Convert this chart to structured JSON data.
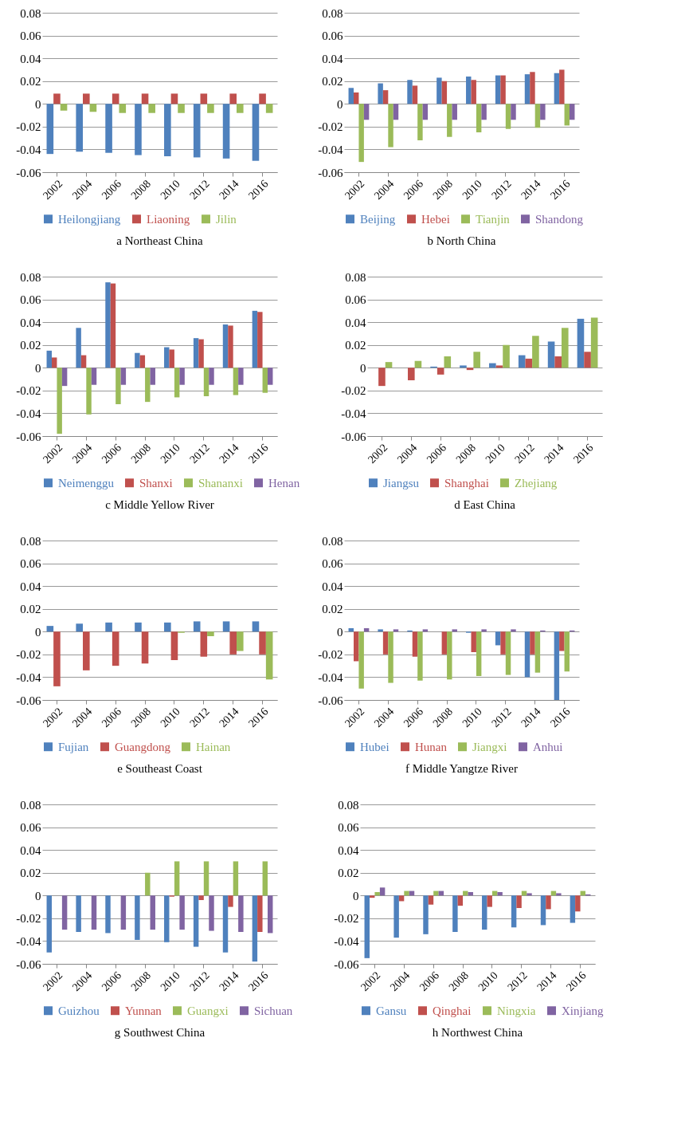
{
  "chart_data": [
    {
      "type": "bar",
      "title": "a Northeast China",
      "categories": [
        "2002",
        "2004",
        "2006",
        "2008",
        "2010",
        "2012",
        "2014",
        "2016"
      ],
      "ylim": [
        -0.06,
        0.08
      ],
      "yticks": [
        -0.06,
        -0.04,
        -0.02,
        0,
        0.02,
        0.04,
        0.06,
        0.08
      ],
      "grid": "y",
      "legend": "bottom",
      "series": [
        {
          "name": "Heilongjiang",
          "color": "#4f81bd",
          "values": [
            -0.044,
            -0.042,
            -0.043,
            -0.045,
            -0.046,
            -0.047,
            -0.048,
            -0.05
          ]
        },
        {
          "name": "Liaoning",
          "color": "#c0504d",
          "values": [
            0.009,
            0.009,
            0.009,
            0.009,
            0.009,
            0.009,
            0.009,
            0.009
          ]
        },
        {
          "name": "Jilin",
          "color": "#9bbb59",
          "values": [
            -0.006,
            -0.007,
            -0.008,
            -0.008,
            -0.008,
            -0.008,
            -0.008,
            -0.008
          ]
        }
      ]
    },
    {
      "type": "bar",
      "title": "b North China",
      "categories": [
        "2002",
        "2004",
        "2006",
        "2008",
        "2010",
        "2012",
        "2014",
        "2016"
      ],
      "ylim": [
        -0.06,
        0.08
      ],
      "yticks": [
        -0.06,
        -0.04,
        -0.02,
        0,
        0.02,
        0.04,
        0.06,
        0.08
      ],
      "grid": "y",
      "legend": "bottom",
      "series": [
        {
          "name": "Beijing",
          "color": "#4f81bd",
          "values": [
            0.014,
            0.018,
            0.021,
            0.023,
            0.024,
            0.025,
            0.026,
            0.027
          ]
        },
        {
          "name": "Hebei",
          "color": "#c0504d",
          "values": [
            0.01,
            0.012,
            0.016,
            0.02,
            0.021,
            0.025,
            0.028,
            0.03
          ]
        },
        {
          "name": "Tianjin",
          "color": "#9bbb59",
          "values": [
            -0.051,
            -0.038,
            -0.032,
            -0.029,
            -0.025,
            -0.022,
            -0.021,
            -0.019
          ]
        },
        {
          "name": "Shandong",
          "color": "#8064a2",
          "values": [
            -0.014,
            -0.014,
            -0.014,
            -0.014,
            -0.014,
            -0.014,
            -0.014,
            -0.014
          ]
        }
      ]
    },
    {
      "type": "bar",
      "title": "c Middle Yellow River",
      "categories": [
        "2002",
        "2004",
        "2006",
        "2008",
        "2010",
        "2012",
        "2014",
        "2016"
      ],
      "ylim": [
        -0.06,
        0.08
      ],
      "yticks": [
        -0.06,
        -0.04,
        -0.02,
        0,
        0.02,
        0.04,
        0.06,
        0.08
      ],
      "grid": "y",
      "legend": "bottom",
      "series": [
        {
          "name": "Neimenggu",
          "color": "#4f81bd",
          "values": [
            0.015,
            0.035,
            0.075,
            0.013,
            0.018,
            0.026,
            0.038,
            0.05
          ]
        },
        {
          "name": "Shanxi",
          "color": "#c0504d",
          "values": [
            0.009,
            0.011,
            0.074,
            0.011,
            0.016,
            0.025,
            0.037,
            0.049
          ]
        },
        {
          "name": "Shananxi",
          "color": "#9bbb59",
          "values": [
            -0.058,
            -0.041,
            -0.032,
            -0.03,
            -0.026,
            -0.025,
            -0.024,
            -0.022
          ]
        },
        {
          "name": "Henan",
          "color": "#8064a2",
          "values": [
            -0.016,
            -0.015,
            -0.015,
            -0.015,
            -0.015,
            -0.015,
            -0.015,
            -0.015
          ]
        }
      ]
    },
    {
      "type": "bar",
      "title": "d East China",
      "categories": [
        "2002",
        "2004",
        "2006",
        "2008",
        "2010",
        "2012",
        "2014",
        "2016"
      ],
      "ylim": [
        -0.06,
        0.08
      ],
      "yticks": [
        -0.06,
        -0.04,
        -0.02,
        0,
        0.02,
        0.04,
        0.06,
        0.08
      ],
      "grid": "y",
      "legend": "bottom",
      "series": [
        {
          "name": "Jiangsu",
          "color": "#4f81bd",
          "values": [
            0,
            0,
            0.001,
            0.002,
            0.004,
            0.011,
            0.023,
            0.043
          ]
        },
        {
          "name": "Shanghai",
          "color": "#c0504d",
          "values": [
            -0.016,
            -0.011,
            -0.006,
            -0.002,
            0.002,
            0.008,
            0.01,
            0.014
          ]
        },
        {
          "name": "Zhejiang",
          "color": "#9bbb59",
          "values": [
            0.005,
            0.006,
            0.01,
            0.014,
            0.02,
            0.028,
            0.035,
            0.044
          ]
        }
      ]
    },
    {
      "type": "bar",
      "title": "e Southeast Coast",
      "categories": [
        "2002",
        "2004",
        "2006",
        "2008",
        "2010",
        "2012",
        "2014",
        "2016"
      ],
      "ylim": [
        -0.06,
        0.08
      ],
      "yticks": [
        -0.06,
        -0.04,
        -0.02,
        0,
        0.02,
        0.04,
        0.06,
        0.08
      ],
      "grid": "y",
      "legend": "bottom",
      "series": [
        {
          "name": "Fujian",
          "color": "#4f81bd",
          "values": [
            0.005,
            0.007,
            0.008,
            0.008,
            0.008,
            0.009,
            0.009,
            0.009
          ]
        },
        {
          "name": "Guangdong",
          "color": "#c0504d",
          "values": [
            -0.048,
            -0.034,
            -0.03,
            -0.028,
            -0.025,
            -0.022,
            -0.02,
            -0.02
          ]
        },
        {
          "name": "Hainan",
          "color": "#9bbb59",
          "values": [
            0,
            0,
            0,
            0,
            -0.001,
            -0.004,
            -0.017,
            -0.042
          ]
        }
      ]
    },
    {
      "type": "bar",
      "title": "f Middle Yangtze River",
      "categories": [
        "2002",
        "2004",
        "2006",
        "2008",
        "2010",
        "2012",
        "2014",
        "2016"
      ],
      "ylim": [
        -0.06,
        0.08
      ],
      "yticks": [
        -0.06,
        -0.04,
        -0.02,
        0,
        0.02,
        0.04,
        0.06,
        0.08
      ],
      "grid": "y",
      "legend": "bottom",
      "series": [
        {
          "name": "Hubei",
          "color": "#4f81bd",
          "values": [
            0.003,
            0.002,
            0.001,
            0,
            -0.001,
            -0.012,
            -0.04,
            -0.06
          ]
        },
        {
          "name": "Hunan",
          "color": "#c0504d",
          "values": [
            -0.026,
            -0.02,
            -0.022,
            -0.02,
            -0.018,
            -0.02,
            -0.02,
            -0.017
          ]
        },
        {
          "name": "Jiangxi",
          "color": "#9bbb59",
          "values": [
            -0.05,
            -0.045,
            -0.043,
            -0.042,
            -0.039,
            -0.038,
            -0.036,
            -0.035
          ]
        },
        {
          "name": "Anhui",
          "color": "#8064a2",
          "values": [
            0.003,
            0.002,
            0.002,
            0.002,
            0.002,
            0.002,
            0.001,
            0.001
          ]
        }
      ]
    },
    {
      "type": "bar",
      "title": "g Southwest China",
      "categories": [
        "2002",
        "2004",
        "2006",
        "2008",
        "2010",
        "2012",
        "2014",
        "2016"
      ],
      "ylim": [
        -0.06,
        0.08
      ],
      "yticks": [
        -0.06,
        -0.04,
        -0.02,
        0,
        0.02,
        0.04,
        0.06,
        0.08
      ],
      "grid": "y",
      "legend": "bottom",
      "series": [
        {
          "name": "Guizhou",
          "color": "#4f81bd",
          "values": [
            -0.05,
            -0.032,
            -0.033,
            -0.039,
            -0.041,
            -0.045,
            -0.05,
            -0.058
          ]
        },
        {
          "name": "Yunnan",
          "color": "#c0504d",
          "values": [
            0,
            0,
            0,
            0,
            -0.001,
            -0.004,
            -0.01,
            -0.032
          ]
        },
        {
          "name": "Guangxi",
          "color": "#9bbb59",
          "values": [
            0,
            0,
            0,
            0.02,
            0.03,
            0.03,
            0.03,
            0.03
          ]
        },
        {
          "name": "Sichuan",
          "color": "#8064a2",
          "values": [
            -0.03,
            -0.03,
            -0.03,
            -0.03,
            -0.03,
            -0.031,
            -0.032,
            -0.033
          ]
        }
      ]
    },
    {
      "type": "bar",
      "title": "h  Northwest China",
      "categories": [
        "2002",
        "2004",
        "2006",
        "2008",
        "2010",
        "2012",
        "2014",
        "2016"
      ],
      "ylim": [
        -0.06,
        0.08
      ],
      "yticks": [
        -0.06,
        -0.04,
        -0.02,
        0,
        0.02,
        0.04,
        0.06,
        0.08
      ],
      "grid": "y",
      "legend": "bottom",
      "series": [
        {
          "name": "Gansu",
          "color": "#4f81bd",
          "values": [
            -0.055,
            -0.037,
            -0.034,
            -0.032,
            -0.03,
            -0.028,
            -0.026,
            -0.024
          ]
        },
        {
          "name": "Qinghai",
          "color": "#c0504d",
          "values": [
            -0.002,
            -0.005,
            -0.008,
            -0.009,
            -0.01,
            -0.011,
            -0.012,
            -0.014
          ]
        },
        {
          "name": "Ningxia",
          "color": "#9bbb59",
          "values": [
            0.003,
            0.004,
            0.004,
            0.004,
            0.004,
            0.004,
            0.004,
            0.004
          ]
        },
        {
          "name": "Xinjiang",
          "color": "#8064a2",
          "values": [
            0.007,
            0.004,
            0.004,
            0.003,
            0.003,
            0.002,
            0.002,
            0.001
          ]
        }
      ]
    }
  ]
}
